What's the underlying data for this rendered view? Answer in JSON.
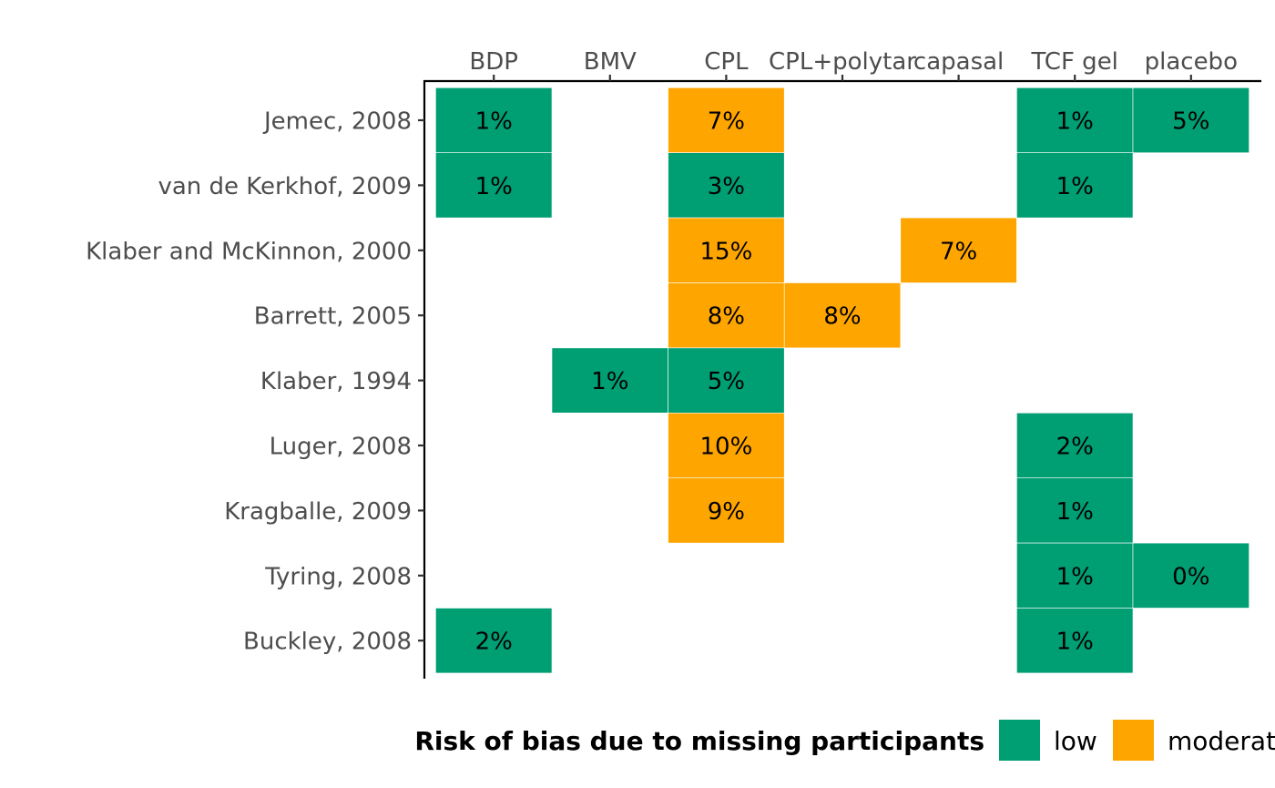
{
  "chart_data": {
    "type": "heatmap",
    "x_categories": [
      "BDP",
      "BMV",
      "CPL",
      "CPL+polytar",
      "capasal",
      "TCF gel",
      "placebo"
    ],
    "y_categories": [
      "Jemec, 2008",
      "van de Kerkhof, 2009",
      "Klaber and McKinnon, 2000",
      "Barrett, 2005",
      "Klaber, 1994",
      "Luger, 2008",
      "Kragballe, 2009",
      "Tyring, 2008",
      "Buckley, 2008"
    ],
    "cells": [
      {
        "study": "Jemec, 2008",
        "treatment": "BDP",
        "value": 1,
        "label": "1%",
        "risk": "low"
      },
      {
        "study": "Jemec, 2008",
        "treatment": "CPL",
        "value": 7,
        "label": "7%",
        "risk": "moderate"
      },
      {
        "study": "Jemec, 2008",
        "treatment": "TCF gel",
        "value": 1,
        "label": "1%",
        "risk": "low"
      },
      {
        "study": "Jemec, 2008",
        "treatment": "placebo",
        "value": 5,
        "label": "5%",
        "risk": "low"
      },
      {
        "study": "van de Kerkhof, 2009",
        "treatment": "BDP",
        "value": 1,
        "label": "1%",
        "risk": "low"
      },
      {
        "study": "van de Kerkhof, 2009",
        "treatment": "CPL",
        "value": 3,
        "label": "3%",
        "risk": "low"
      },
      {
        "study": "van de Kerkhof, 2009",
        "treatment": "TCF gel",
        "value": 1,
        "label": "1%",
        "risk": "low"
      },
      {
        "study": "Klaber and McKinnon, 2000",
        "treatment": "CPL",
        "value": 15,
        "label": "15%",
        "risk": "moderate"
      },
      {
        "study": "Klaber and McKinnon, 2000",
        "treatment": "capasal",
        "value": 7,
        "label": "7%",
        "risk": "moderate"
      },
      {
        "study": "Barrett, 2005",
        "treatment": "CPL",
        "value": 8,
        "label": "8%",
        "risk": "moderate"
      },
      {
        "study": "Barrett, 2005",
        "treatment": "CPL+polytar",
        "value": 8,
        "label": "8%",
        "risk": "moderate"
      },
      {
        "study": "Klaber, 1994",
        "treatment": "BMV",
        "value": 1,
        "label": "1%",
        "risk": "low"
      },
      {
        "study": "Klaber, 1994",
        "treatment": "CPL",
        "value": 5,
        "label": "5%",
        "risk": "low"
      },
      {
        "study": "Luger, 2008",
        "treatment": "CPL",
        "value": 10,
        "label": "10%",
        "risk": "moderate"
      },
      {
        "study": "Luger, 2008",
        "treatment": "TCF gel",
        "value": 2,
        "label": "2%",
        "risk": "low"
      },
      {
        "study": "Kragballe, 2009",
        "treatment": "CPL",
        "value": 9,
        "label": "9%",
        "risk": "moderate"
      },
      {
        "study": "Kragballe, 2009",
        "treatment": "TCF gel",
        "value": 1,
        "label": "1%",
        "risk": "low"
      },
      {
        "study": "Tyring, 2008",
        "treatment": "TCF gel",
        "value": 1,
        "label": "1%",
        "risk": "low"
      },
      {
        "study": "Tyring, 2008",
        "treatment": "placebo",
        "value": 0,
        "label": "0%",
        "risk": "low"
      },
      {
        "study": "Buckley, 2008",
        "treatment": "BDP",
        "value": 2,
        "label": "2%",
        "risk": "low"
      },
      {
        "study": "Buckley, 2008",
        "treatment": "TCF gel",
        "value": 1,
        "label": "1%",
        "risk": "low"
      }
    ],
    "legend": {
      "title": "Risk of bias due to missing participants",
      "placement": "bottom",
      "entries": [
        {
          "key": "low",
          "label": "low",
          "color": "#009E73"
        },
        {
          "key": "moderate",
          "label": "moderate",
          "color": "#FFA500"
        }
      ]
    },
    "x_axis_position": "top",
    "grid": false
  }
}
